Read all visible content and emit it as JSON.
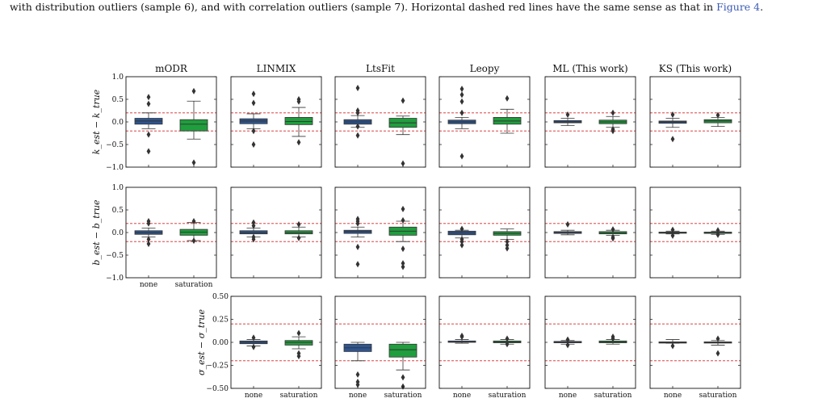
{
  "caption": {
    "text_before": "with distribution outliers (sample 6), and with correlation outliers (sample 7). Horizontal dashed red lines have the same sense as that in ",
    "ref": "Figure 4",
    "text_after": "."
  },
  "chart_data": {
    "type": "box",
    "methods": [
      "mODR",
      "LINMIX",
      "LtsFit",
      "Leopy",
      "ML (This work)",
      "KS (This work)"
    ],
    "categories": [
      "none",
      "saturation"
    ],
    "colors": {
      "none": "#2e5590",
      "saturation": "#1f9e3d",
      "threshold": "#d62728"
    },
    "threshold_lines": [
      0.2,
      -0.2
    ],
    "rows": [
      {
        "ylabel": "k_est − k_true",
        "ylim": [
          -1.0,
          1.0
        ],
        "yticks": [
          "1.0",
          "0.5",
          "0.0",
          "−0.5",
          "−1.0"
        ],
        "ytick_values": [
          1.0,
          0.5,
          0.0,
          -0.5,
          -1.0
        ],
        "methods_shown": [
          0,
          1,
          2,
          3,
          4,
          5
        ],
        "show_xticks": false,
        "boxes": [
          [
            {
              "q1": -0.05,
              "median": 0.02,
              "q3": 0.08,
              "wlo": -0.15,
              "whi": 0.2,
              "fliers": [
                0.55,
                0.4,
                -0.28,
                -0.65
              ]
            },
            {
              "q1": -0.2,
              "median": -0.05,
              "q3": 0.05,
              "wlo": -0.38,
              "whi": 0.46,
              "fliers": [
                0.68,
                -0.9
              ]
            }
          ],
          [
            {
              "q1": -0.04,
              "median": 0.02,
              "q3": 0.07,
              "wlo": -0.15,
              "whi": 0.18,
              "fliers": [
                0.62,
                0.42,
                -0.2,
                -0.5
              ]
            },
            {
              "q1": -0.06,
              "median": 0.01,
              "q3": 0.1,
              "wlo": -0.32,
              "whi": 0.32,
              "fliers": [
                0.5,
                0.45,
                -0.45
              ]
            }
          ],
          [
            {
              "q1": -0.05,
              "median": 0.0,
              "q3": 0.05,
              "wlo": -0.12,
              "whi": 0.14,
              "fliers": [
                0.75,
                0.25,
                0.2,
                -0.1,
                -0.3
              ]
            },
            {
              "q1": -0.12,
              "median": -0.02,
              "q3": 0.08,
              "wlo": -0.28,
              "whi": 0.13,
              "fliers": [
                0.47,
                -0.92
              ]
            }
          ],
          [
            {
              "q1": -0.04,
              "median": 0.0,
              "q3": 0.04,
              "wlo": -0.15,
              "whi": 0.1,
              "fliers": [
                0.73,
                0.6,
                0.45,
                0.2,
                -0.76
              ]
            },
            {
              "q1": -0.05,
              "median": 0.02,
              "q3": 0.1,
              "wlo": -0.25,
              "whi": 0.28,
              "fliers": [
                0.52
              ]
            }
          ],
          [
            {
              "q1": -0.02,
              "median": 0.0,
              "q3": 0.03,
              "wlo": -0.08,
              "whi": 0.08,
              "fliers": [
                0.16
              ]
            },
            {
              "q1": -0.04,
              "median": 0.0,
              "q3": 0.04,
              "wlo": -0.12,
              "whi": 0.12,
              "fliers": [
                0.2,
                -0.16,
                -0.2
              ]
            }
          ],
          [
            {
              "q1": -0.03,
              "median": 0.0,
              "q3": 0.02,
              "wlo": -0.12,
              "whi": 0.08,
              "fliers": [
                0.16,
                -0.38
              ]
            },
            {
              "q1": -0.02,
              "median": 0.02,
              "q3": 0.05,
              "wlo": -0.1,
              "whi": 0.1,
              "fliers": [
                0.15
              ]
            }
          ]
        ]
      },
      {
        "ylabel": "b_est − b_true",
        "ylim": [
          -1.0,
          1.0
        ],
        "yticks": [
          "1.0",
          "0.5",
          "0.0",
          "−0.5",
          "−1.0"
        ],
        "ytick_values": [
          1.0,
          0.5,
          0.0,
          -0.5,
          -1.0
        ],
        "methods_shown": [
          0,
          1,
          2,
          3,
          4,
          5
        ],
        "show_xticks": true,
        "xtick_methods": [
          0
        ],
        "boxes": [
          [
            {
              "q1": -0.04,
              "median": 0.0,
              "q3": 0.04,
              "wlo": -0.1,
              "whi": 0.1,
              "fliers": [
                0.25,
                0.2,
                -0.15,
                -0.25
              ]
            },
            {
              "q1": -0.06,
              "median": 0.01,
              "q3": 0.07,
              "wlo": -0.18,
              "whi": 0.22,
              "fliers": [
                0.25,
                -0.18
              ]
            }
          ],
          [
            {
              "q1": -0.03,
              "median": 0.0,
              "q3": 0.04,
              "wlo": -0.1,
              "whi": 0.1,
              "fliers": [
                0.22,
                0.15,
                -0.1,
                -0.15
              ]
            },
            {
              "q1": -0.03,
              "median": 0.0,
              "q3": 0.04,
              "wlo": -0.1,
              "whi": 0.12,
              "fliers": [
                0.18,
                -0.12
              ]
            }
          ],
          [
            {
              "q1": -0.02,
              "median": 0.02,
              "q3": 0.05,
              "wlo": -0.1,
              "whi": 0.12,
              "fliers": [
                0.3,
                0.25,
                0.2,
                -0.32,
                -0.7
              ]
            },
            {
              "q1": -0.06,
              "median": 0.03,
              "q3": 0.12,
              "wlo": -0.2,
              "whi": 0.25,
              "fliers": [
                0.52,
                0.27,
                -0.36,
                -0.68,
                -0.76
              ]
            }
          ],
          [
            {
              "q1": -0.05,
              "median": -0.01,
              "q3": 0.03,
              "wlo": -0.12,
              "whi": 0.05,
              "fliers": [
                0.08,
                -0.15,
                -0.2,
                -0.28
              ]
            },
            {
              "q1": -0.06,
              "median": -0.02,
              "q3": 0.02,
              "wlo": -0.15,
              "whi": 0.08,
              "fliers": [
                -0.2,
                -0.28,
                -0.35
              ]
            }
          ],
          [
            {
              "q1": -0.02,
              "median": 0.0,
              "q3": 0.02,
              "wlo": -0.05,
              "whi": 0.05,
              "fliers": [
                0.18
              ]
            },
            {
              "q1": -0.03,
              "median": -0.01,
              "q3": 0.02,
              "wlo": -0.06,
              "whi": 0.05,
              "fliers": [
                0.07,
                -0.1,
                -0.13
              ]
            }
          ],
          [
            {
              "q1": -0.01,
              "median": 0.0,
              "q3": 0.01,
              "wlo": -0.03,
              "whi": 0.03,
              "fliers": [
                0.06,
                -0.07
              ]
            },
            {
              "q1": -0.02,
              "median": 0.0,
              "q3": 0.01,
              "wlo": -0.04,
              "whi": 0.03,
              "fliers": [
                0.05,
                -0.05
              ]
            }
          ]
        ]
      },
      {
        "ylabel": "σ_est − σ_true",
        "ylim": [
          -0.5,
          0.5
        ],
        "yticks": [
          "0.50",
          "0.25",
          "0.00",
          "−0.25",
          "−0.50"
        ],
        "ytick_values": [
          0.5,
          0.25,
          0.0,
          -0.25,
          -0.5
        ],
        "methods_shown": [
          1,
          2,
          3,
          4,
          5
        ],
        "show_xticks": true,
        "xtick_methods": [
          1,
          2,
          3,
          4,
          5
        ],
        "boxes": [
          null,
          [
            {
              "q1": -0.015,
              "median": 0.0,
              "q3": 0.015,
              "wlo": -0.04,
              "whi": 0.03,
              "fliers": [
                0.05,
                -0.05
              ]
            },
            {
              "q1": -0.03,
              "median": 0.0,
              "q3": 0.02,
              "wlo": -0.07,
              "whi": 0.06,
              "fliers": [
                0.1,
                -0.12,
                -0.15
              ]
            }
          ],
          [
            {
              "q1": -0.1,
              "median": -0.06,
              "q3": -0.02,
              "wlo": -0.2,
              "whi": 0.0,
              "fliers": [
                -0.35,
                -0.43,
                -0.46
              ]
            },
            {
              "q1": -0.16,
              "median": -0.08,
              "q3": -0.02,
              "wlo": -0.3,
              "whi": 0.0,
              "fliers": [
                -0.38,
                -0.48
              ]
            }
          ],
          [
            {
              "q1": 0.0,
              "median": 0.005,
              "q3": 0.015,
              "wlo": -0.01,
              "whi": 0.03,
              "fliers": [
                0.06,
                0.07
              ]
            },
            {
              "q1": -0.005,
              "median": 0.005,
              "q3": 0.015,
              "wlo": -0.02,
              "whi": 0.03,
              "fliers": [
                0.04,
                -0.02
              ]
            }
          ],
          [
            {
              "q1": -0.005,
              "median": 0.0,
              "q3": 0.01,
              "wlo": -0.02,
              "whi": 0.02,
              "fliers": [
                0.03,
                -0.03
              ]
            },
            {
              "q1": -0.005,
              "median": 0.005,
              "q3": 0.015,
              "wlo": -0.02,
              "whi": 0.03,
              "fliers": [
                0.06,
                0.04
              ]
            }
          ],
          [
            {
              "q1": -0.005,
              "median": 0.0,
              "q3": 0.005,
              "wlo": -0.01,
              "whi": 0.03,
              "fliers": [
                -0.04
              ]
            },
            {
              "q1": -0.005,
              "median": 0.0,
              "q3": 0.005,
              "wlo": -0.03,
              "whi": 0.02,
              "fliers": [
                0.04,
                -0.12
              ]
            }
          ]
        ]
      }
    ]
  }
}
